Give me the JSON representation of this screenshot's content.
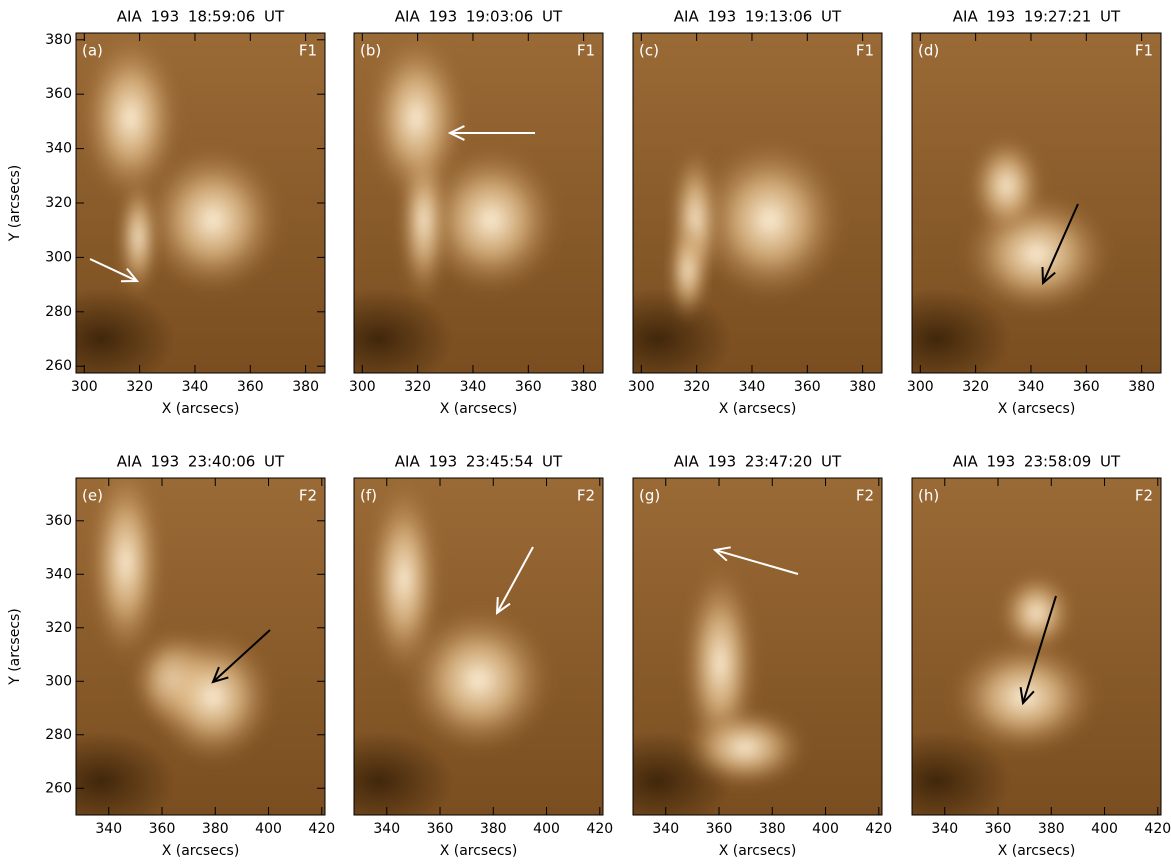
{
  "panels": [
    {
      "title": "AIA 193 18:59:06 UT",
      "label": "(a)",
      "tag": "F1",
      "xlim": [
        297,
        387
      ],
      "ylim": [
        257.5,
        382.5
      ],
      "xticks": [
        300,
        320,
        340,
        360,
        380
      ],
      "yticks": [
        260,
        280,
        300,
        320,
        340,
        360,
        380
      ],
      "xlabel": "X (arcsecs)",
      "ylabel": "Y (arcsecs)"
    },
    {
      "title": "AIA 193 19:03:06 UT",
      "label": "(b)",
      "tag": "F1",
      "xlim": [
        297,
        387
      ],
      "ylim": [
        257.5,
        382.5
      ],
      "xticks": [
        300,
        320,
        340,
        360,
        380
      ],
      "xlabel": "X (arcsecs)"
    },
    {
      "title": "AIA 193 19:13:06 UT",
      "label": "(c)",
      "tag": "F1",
      "xlim": [
        297,
        387
      ],
      "ylim": [
        257.5,
        382.5
      ],
      "xticks": [
        300,
        320,
        340,
        360,
        380
      ],
      "xlabel": "X (arcsecs)"
    },
    {
      "title": "AIA 193 19:27:21 UT",
      "label": "(d)",
      "tag": "F1",
      "xlim": [
        297,
        387
      ],
      "ylim": [
        257.5,
        382.5
      ],
      "xticks": [
        300,
        320,
        340,
        360,
        380
      ],
      "xlabel": "X (arcsecs)"
    },
    {
      "title": "AIA 193 23:40:06 UT",
      "label": "(e)",
      "tag": "F2",
      "xlim": [
        327.7,
        421.2
      ],
      "ylim": [
        250,
        376
      ],
      "xticks": [
        340,
        360,
        380,
        400,
        420
      ],
      "yticks": [
        260,
        280,
        300,
        320,
        340,
        360
      ],
      "xlabel": "X (arcsecs)",
      "ylabel": "Y (arcsecs)"
    },
    {
      "title": "AIA 193 23:45:54 UT",
      "label": "(f)",
      "tag": "F2",
      "xlim": [
        327.7,
        421.2
      ],
      "ylim": [
        250,
        376
      ],
      "xticks": [
        340,
        360,
        380,
        400,
        420
      ],
      "xlabel": "X (arcsecs)"
    },
    {
      "title": "AIA 193 23:47:20 UT",
      "label": "(g)",
      "tag": "F2",
      "xlim": [
        327.7,
        421.2
      ],
      "ylim": [
        250,
        376
      ],
      "xticks": [
        340,
        360,
        380,
        400,
        420
      ],
      "xlabel": "X (arcsecs)"
    },
    {
      "title": "AIA 193 23:58:09 UT",
      "label": "(h)",
      "tag": "F2",
      "xlim": [
        327.7,
        421.2
      ],
      "ylim": [
        250,
        376
      ],
      "xticks": [
        340,
        360,
        380,
        400,
        420
      ],
      "xlabel": "X (arcsecs)"
    }
  ]
}
